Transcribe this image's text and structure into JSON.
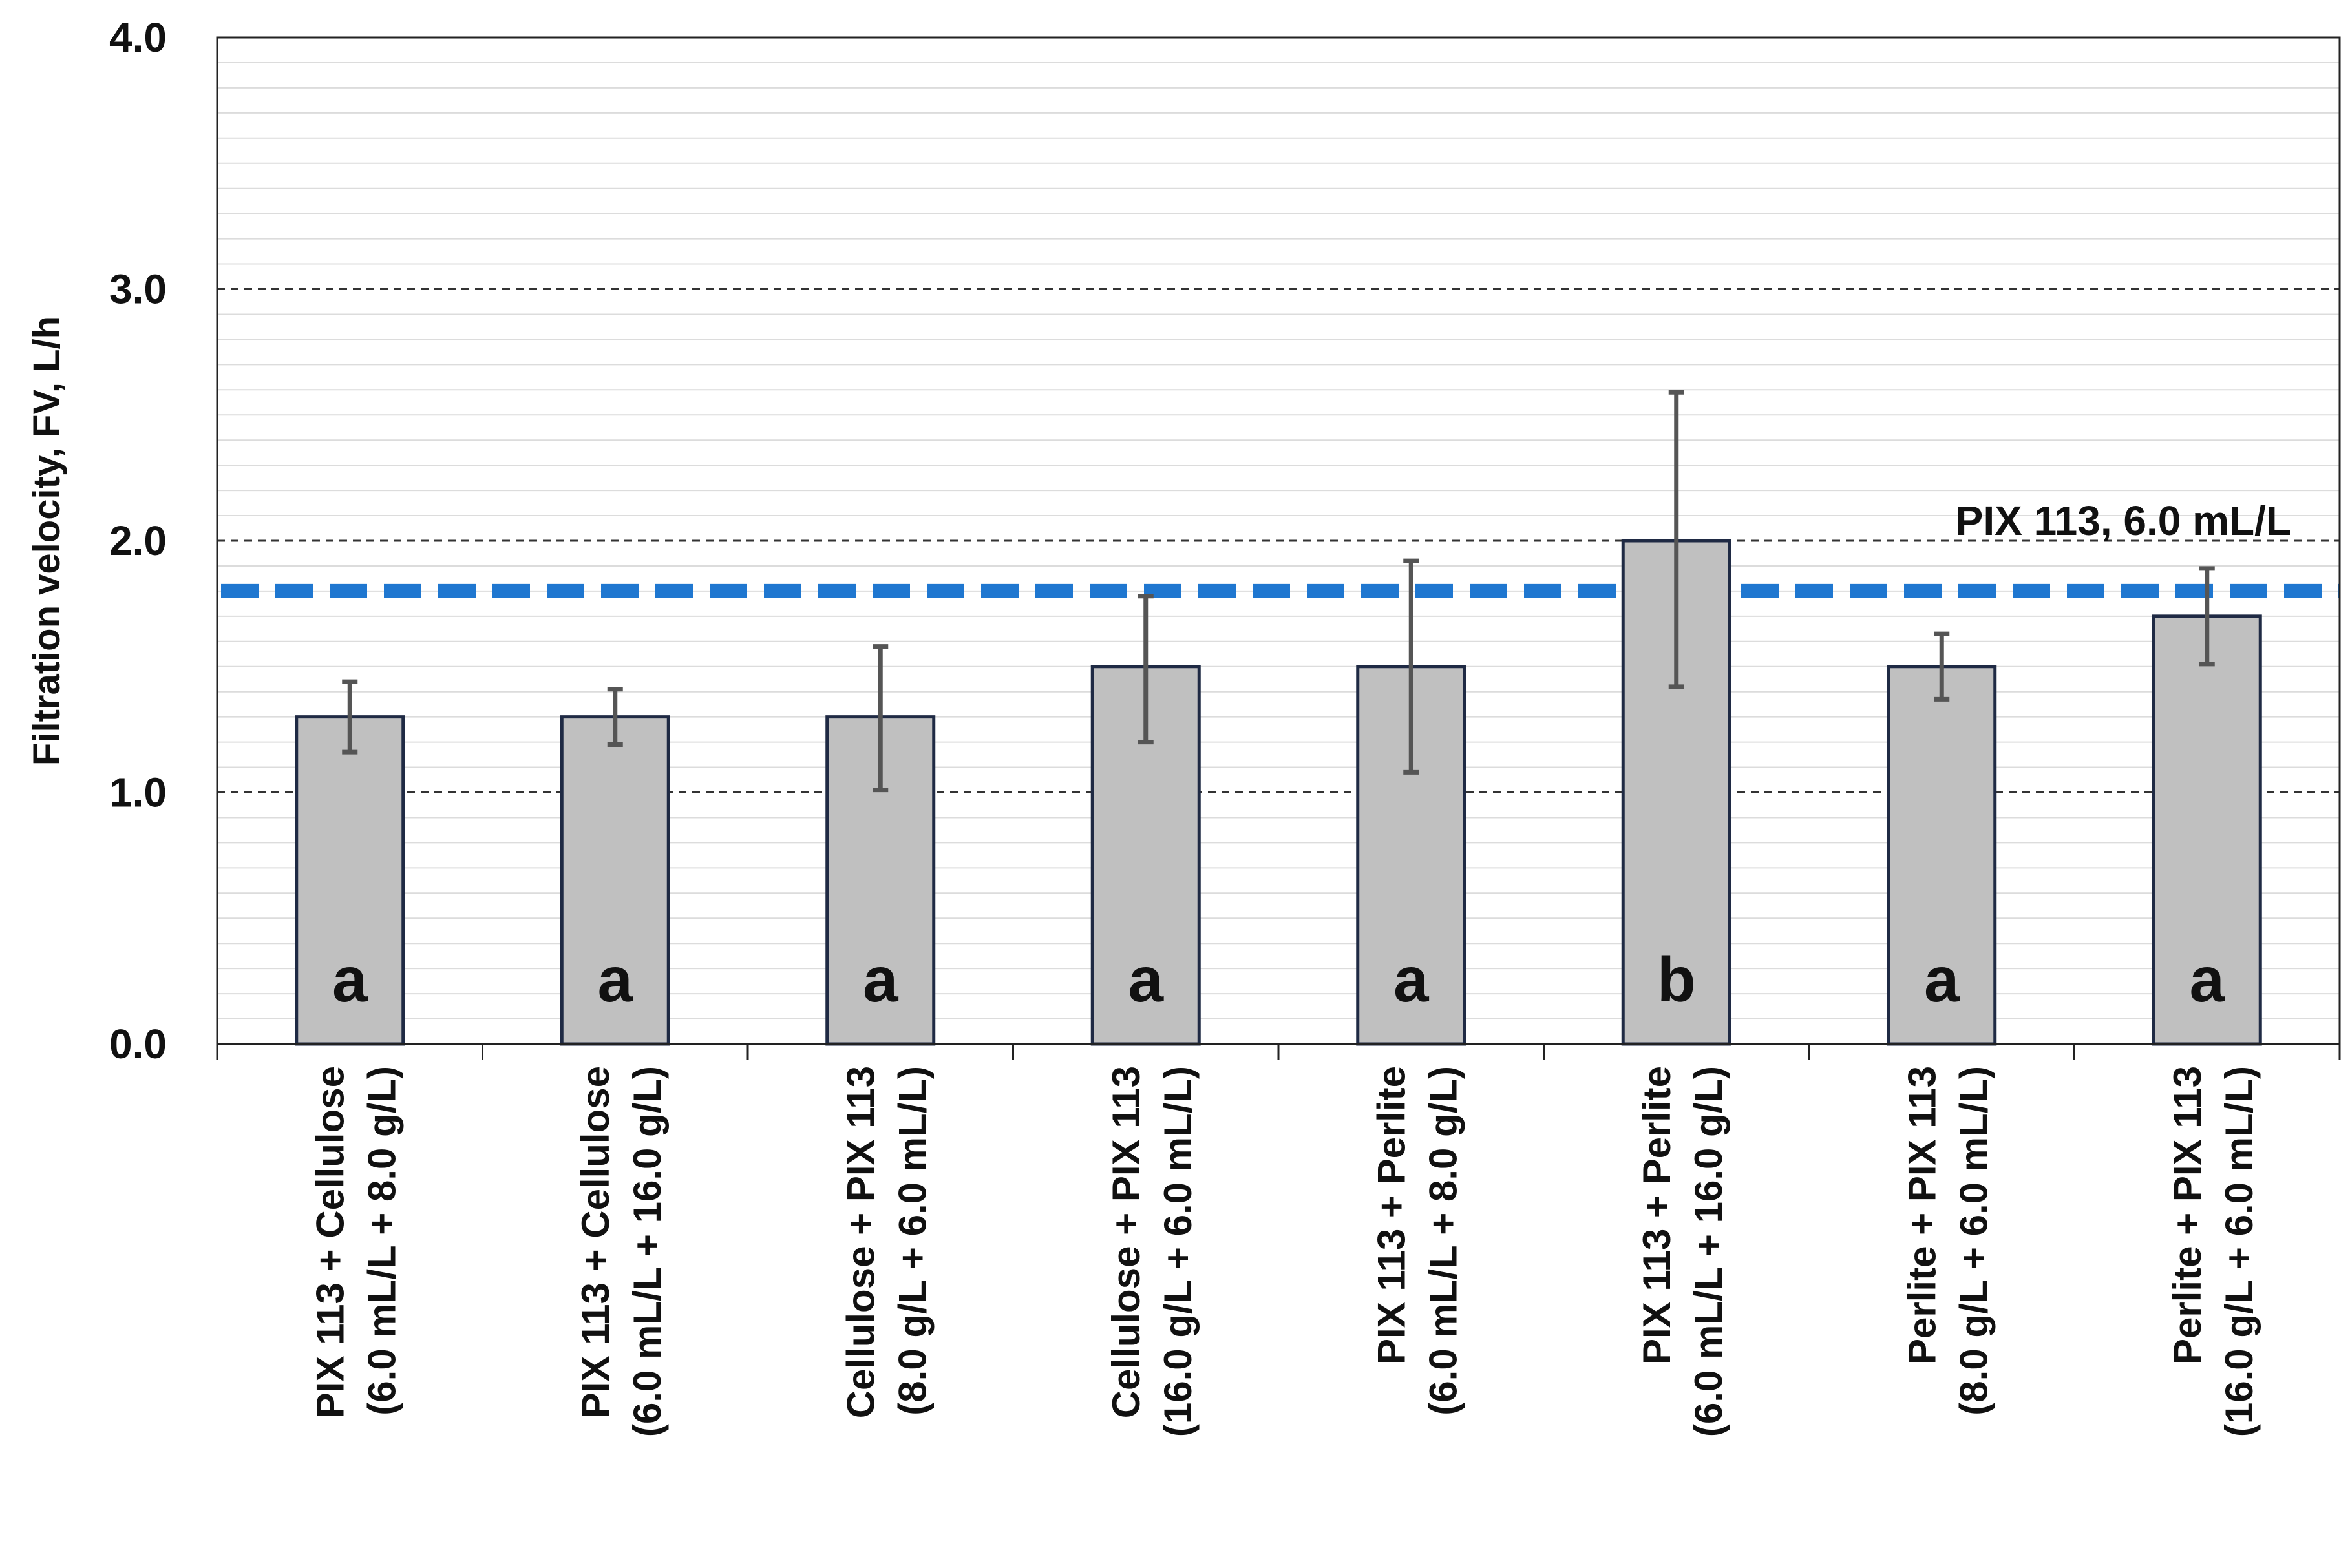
{
  "chart_data": {
    "type": "bar",
    "ylabel": "Filtration velocity, FV, L/h",
    "xlabel": "",
    "ylim": [
      0,
      4
    ],
    "y_ticks": [
      "0.0",
      "1.0",
      "2.0",
      "3.0",
      "4.0"
    ],
    "y_tick_values": [
      0,
      1,
      2,
      3,
      4
    ],
    "grid": {
      "major": "dashed",
      "minor": "light"
    },
    "categories": [
      [
        "PIX 113 + Cellulose",
        "(6.0 mL/L + 8.0 g/L)"
      ],
      [
        "PIX 113 + Cellulose",
        "(6.0 mL/L + 16.0 g/L)"
      ],
      [
        "Cellulose + PIX 113",
        "(8.0 g/L + 6.0 mL/L)"
      ],
      [
        "Cellulose + PIX 113",
        "(16.0 g/L + 6.0 mL/L)"
      ],
      [
        "PIX 113 + Perlite",
        "(6.0 mL/L + 8.0 g/L)"
      ],
      [
        "PIX 113 + Perlite",
        "(6.0 mL/L + 16.0 g/L)"
      ],
      [
        "Perlite + PIX 113",
        "(8.0 g/L + 6.0 mL/L)"
      ],
      [
        "Perlite + PIX 113",
        "(16.0 g/L + 6.0 mL/L)"
      ]
    ],
    "values": [
      1.3,
      1.3,
      1.3,
      1.5,
      1.5,
      2.0,
      1.5,
      1.7
    ],
    "error_low": [
      1.16,
      1.19,
      1.01,
      1.2,
      1.08,
      1.42,
      1.37,
      1.51
    ],
    "error_high": [
      1.44,
      1.41,
      1.58,
      1.78,
      1.92,
      2.59,
      1.63,
      1.89
    ],
    "group_letters": [
      "a",
      "a",
      "a",
      "a",
      "a",
      "b",
      "a",
      "a"
    ],
    "reference_line": {
      "value": 1.8,
      "label": "PIX 113, 6.0 mL/L",
      "color": "#1f77d0",
      "style": "dashed"
    },
    "colors": {
      "bar_fill": "#c0c0c0",
      "bar_stroke": "#1f2a44",
      "error_bar": "#555555",
      "axis": "#222222"
    }
  }
}
